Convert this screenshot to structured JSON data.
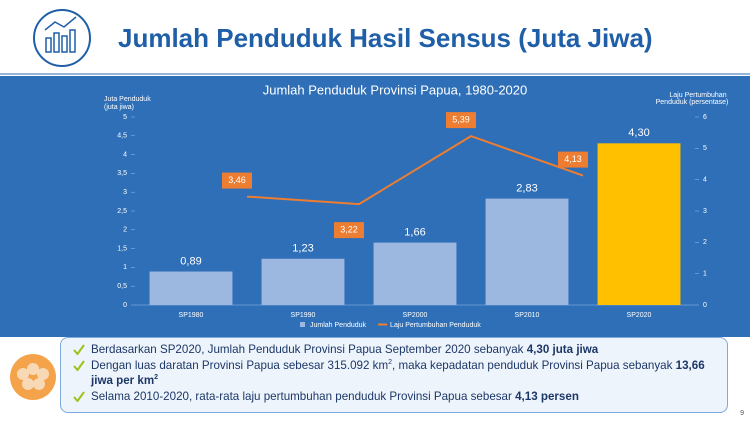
{
  "header": {
    "title": "Jumlah Penduduk Hasil Sensus (Juta Jiwa)"
  },
  "chart_data": {
    "type": "bar",
    "title": "Jumlah Penduduk Provinsi Papua, 1980-2020",
    "y_label": [
      "Juta Penduduk",
      "(juta jiwa)"
    ],
    "y2_label": [
      "Laju Pertumbuhan",
      "Penduduk (persentase)"
    ],
    "categories": [
      "SP1980",
      "SP1990",
      "SP2000",
      "SP2010",
      "SP2020"
    ],
    "ylim": [
      0,
      5
    ],
    "yticks": [
      0,
      {
        "value": 0.5,
        "label": "0,5"
      },
      1,
      {
        "value": 1.5,
        "label": "1,5"
      },
      2,
      {
        "value": 2.5,
        "label": "2,5"
      },
      3,
      {
        "value": 3.5,
        "label": "3,5"
      },
      4,
      {
        "value": 4.5,
        "label": "4,5"
      },
      5
    ],
    "y2lim": [
      0,
      6
    ],
    "y2ticks": [
      0,
      1,
      2,
      3,
      4,
      5,
      6
    ],
    "series": [
      {
        "name": "Jumlah Penduduk",
        "type": "bar",
        "color": "#9db8e0",
        "highlight_color": "#ffc000",
        "values": [
          0.89,
          1.23,
          1.66,
          2.83,
          4.3
        ],
        "value_labels": [
          "0,89",
          "1,23",
          "1,66",
          "2,83",
          "4,30"
        ]
      },
      {
        "name": "Laju Pertumbuhan Penduduk",
        "type": "line",
        "axis": "y2",
        "color": "#ed7d31",
        "values": [
          null,
          3.46,
          3.22,
          5.39,
          4.13
        ],
        "value_labels": [
          null,
          "3,46",
          "3,22",
          "5,39",
          "4,13"
        ]
      }
    ],
    "legend": "bottom"
  },
  "notes": [
    {
      "parts": [
        {
          "text": "Berdasarkan SP2020, Jumlah Penduduk Provinsi Papua September 2020 sebanyak "
        },
        {
          "text": "4,30 juta jiwa",
          "bold": true
        }
      ]
    },
    {
      "parts": [
        {
          "text": "Dengan luas daratan Provinsi Papua sebesar 315.092 km"
        },
        {
          "text": "2",
          "sup": true
        },
        {
          "text": ", maka kepadatan penduduk Provinsi Papua sebanyak "
        },
        {
          "text": "13,66 jiwa per km",
          "bold": true
        },
        {
          "text": "2",
          "bold": true,
          "sup": true
        }
      ]
    },
    {
      "parts": [
        {
          "text": "Selama 2010-2020, rata-rata laju pertumbuhan penduduk Provinsi Papua sebesar "
        },
        {
          "text": "4,13 persen",
          "bold": true
        }
      ]
    }
  ],
  "page_number": "9"
}
